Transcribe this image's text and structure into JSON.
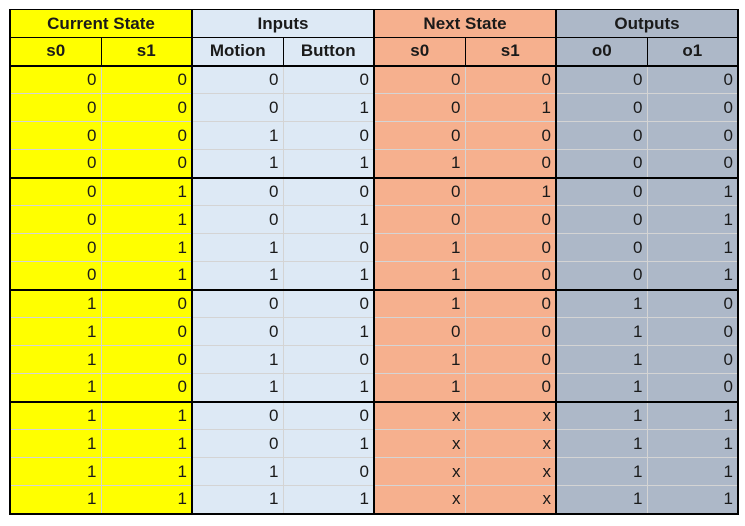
{
  "table": {
    "group_headers": [
      "Current State",
      "Inputs",
      "Next State",
      "Outputs"
    ],
    "column_headers": [
      "s0",
      "s1",
      "Motion",
      "Button",
      "s0",
      "s1",
      "o0",
      "o1"
    ],
    "rows": [
      [
        "0",
        "0",
        "0",
        "0",
        "0",
        "0",
        "0",
        "0"
      ],
      [
        "0",
        "0",
        "0",
        "1",
        "0",
        "1",
        "0",
        "0"
      ],
      [
        "0",
        "0",
        "1",
        "0",
        "0",
        "0",
        "0",
        "0"
      ],
      [
        "0",
        "0",
        "1",
        "1",
        "1",
        "0",
        "0",
        "0"
      ],
      [
        "0",
        "1",
        "0",
        "0",
        "0",
        "1",
        "0",
        "1"
      ],
      [
        "0",
        "1",
        "0",
        "1",
        "0",
        "0",
        "0",
        "1"
      ],
      [
        "0",
        "1",
        "1",
        "0",
        "1",
        "0",
        "0",
        "1"
      ],
      [
        "0",
        "1",
        "1",
        "1",
        "1",
        "0",
        "0",
        "1"
      ],
      [
        "1",
        "0",
        "0",
        "0",
        "1",
        "0",
        "1",
        "0"
      ],
      [
        "1",
        "0",
        "0",
        "1",
        "0",
        "0",
        "1",
        "0"
      ],
      [
        "1",
        "0",
        "1",
        "0",
        "1",
        "0",
        "1",
        "0"
      ],
      [
        "1",
        "0",
        "1",
        "1",
        "1",
        "0",
        "1",
        "0"
      ],
      [
        "1",
        "1",
        "0",
        "0",
        "x",
        "x",
        "1",
        "1"
      ],
      [
        "1",
        "1",
        "0",
        "1",
        "x",
        "x",
        "1",
        "1"
      ],
      [
        "1",
        "1",
        "1",
        "0",
        "x",
        "x",
        "1",
        "1"
      ],
      [
        "1",
        "1",
        "1",
        "1",
        "x",
        "x",
        "1",
        "1"
      ]
    ],
    "colors": {
      "current_state": "#ffff00",
      "inputs": "#dde9f5",
      "next_state": "#f6b08e",
      "outputs": "#adb8c8"
    }
  }
}
